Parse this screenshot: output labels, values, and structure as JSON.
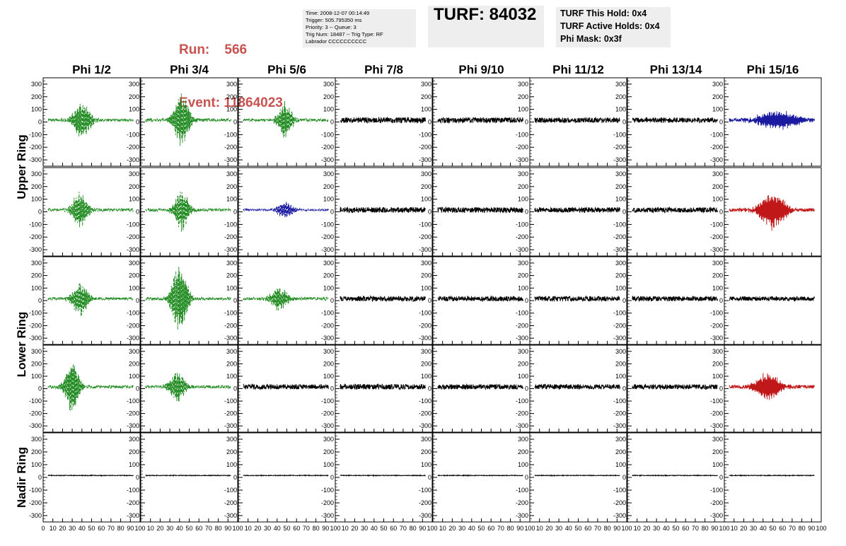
{
  "header": {
    "run_label": "Run:",
    "run_value": "566",
    "event_label": "Event:",
    "event_value": "11864023",
    "info_lines": [
      "Time: 2008-12-07 00:14:49",
      "Trigger: 505.795350 ms",
      "Priority: 3 -- Queue: 3",
      "Trig Num: 18487 -- Trig Type: RF",
      "Labrador CCCCCCCCCC"
    ],
    "turf_text": "TURF: 84032",
    "hold_lines": [
      "TURF This Hold: 0x4",
      "TURF Active Holds: 0x4",
      "Phi Mask: 0x3f"
    ],
    "header_color": "#c8524f"
  },
  "chart_data": {
    "type": "line",
    "columns": [
      "Phi 1/2",
      "Phi 3/4",
      "Phi 5/6",
      "Phi 7/8",
      "Phi 9/10",
      "Phi 11/12",
      "Phi 13/14",
      "Phi 15/16"
    ],
    "row_groups": [
      {
        "label": "Upper Ring",
        "rows": [
          0,
          1
        ]
      },
      {
        "label": "Lower Ring",
        "rows": [
          2,
          3
        ]
      },
      {
        "label": "Nadir Ring",
        "rows": [
          4
        ]
      }
    ],
    "xlim": [
      0,
      100
    ],
    "ylim": [
      -350,
      350
    ],
    "yticks": [
      -300,
      -200,
      -100,
      0,
      100,
      200,
      300
    ],
    "xtick_labels": [
      "0",
      "10",
      "20",
      "30",
      "40",
      "50",
      "60",
      "70",
      "80",
      "90",
      "100"
    ],
    "colors": {
      "green": "#1f8a1f",
      "black": "#000000",
      "blue": "#1a1aa0",
      "red": "#c01818"
    },
    "panels": [
      [
        {
          "color": "green",
          "dashed": true,
          "amp": 150,
          "center": 40,
          "width": 10,
          "noise": 12
        },
        {
          "color": "green",
          "dashed": true,
          "amp": 220,
          "center": 42,
          "width": 9,
          "noise": 12
        },
        {
          "color": "green",
          "dashed": true,
          "amp": 150,
          "center": 48,
          "width": 8,
          "noise": 12
        },
        {
          "color": "black",
          "dashed": false,
          "amp": 0,
          "center": 50,
          "width": 10,
          "noise": 22
        },
        {
          "color": "black",
          "dashed": false,
          "amp": 0,
          "center": 50,
          "width": 10,
          "noise": 22
        },
        {
          "color": "black",
          "dashed": false,
          "amp": 0,
          "center": 50,
          "width": 10,
          "noise": 20
        },
        {
          "color": "black",
          "dashed": false,
          "amp": 0,
          "center": 50,
          "width": 10,
          "noise": 20
        },
        {
          "color": "blue",
          "dashed": false,
          "amp": 80,
          "center": 55,
          "width": 22,
          "noise": 14
        }
      ],
      [
        {
          "color": "green",
          "dashed": true,
          "amp": 150,
          "center": 38,
          "width": 9,
          "noise": 12
        },
        {
          "color": "green",
          "dashed": true,
          "amp": 180,
          "center": 42,
          "width": 8,
          "noise": 12
        },
        {
          "color": "blue",
          "dashed": true,
          "amp": 70,
          "center": 48,
          "width": 9,
          "noise": 8
        },
        {
          "color": "black",
          "dashed": false,
          "amp": 0,
          "center": 50,
          "width": 10,
          "noise": 22
        },
        {
          "color": "black",
          "dashed": false,
          "amp": 0,
          "center": 50,
          "width": 10,
          "noise": 22
        },
        {
          "color": "black",
          "dashed": false,
          "amp": 0,
          "center": 50,
          "width": 10,
          "noise": 20
        },
        {
          "color": "black",
          "dashed": false,
          "amp": 0,
          "center": 50,
          "width": 10,
          "noise": 20
        },
        {
          "color": "red",
          "dashed": false,
          "amp": 160,
          "center": 50,
          "width": 14,
          "noise": 14
        }
      ],
      [
        {
          "color": "green",
          "dashed": true,
          "amp": 140,
          "center": 38,
          "width": 9,
          "noise": 12
        },
        {
          "color": "green",
          "dashed": true,
          "amp": 290,
          "center": 40,
          "width": 9,
          "noise": 12
        },
        {
          "color": "green",
          "dashed": true,
          "amp": 100,
          "center": 42,
          "width": 10,
          "noise": 12
        },
        {
          "color": "black",
          "dashed": false,
          "amp": 0,
          "center": 50,
          "width": 10,
          "noise": 20
        },
        {
          "color": "black",
          "dashed": false,
          "amp": 0,
          "center": 50,
          "width": 10,
          "noise": 20
        },
        {
          "color": "black",
          "dashed": false,
          "amp": 0,
          "center": 50,
          "width": 10,
          "noise": 20
        },
        {
          "color": "black",
          "dashed": false,
          "amp": 0,
          "center": 50,
          "width": 10,
          "noise": 20
        },
        {
          "color": "black",
          "dashed": false,
          "amp": 0,
          "center": 50,
          "width": 10,
          "noise": 18
        }
      ],
      [
        {
          "color": "green",
          "dashed": true,
          "amp": 230,
          "center": 30,
          "width": 8,
          "noise": 12
        },
        {
          "color": "green",
          "dashed": true,
          "amp": 130,
          "center": 38,
          "width": 9,
          "noise": 12
        },
        {
          "color": "black",
          "dashed": false,
          "amp": 0,
          "center": 50,
          "width": 10,
          "noise": 20
        },
        {
          "color": "black",
          "dashed": false,
          "amp": 0,
          "center": 50,
          "width": 10,
          "noise": 22
        },
        {
          "color": "black",
          "dashed": false,
          "amp": 0,
          "center": 50,
          "width": 10,
          "noise": 20
        },
        {
          "color": "black",
          "dashed": false,
          "amp": 0,
          "center": 50,
          "width": 10,
          "noise": 20
        },
        {
          "color": "black",
          "dashed": false,
          "amp": 0,
          "center": 50,
          "width": 10,
          "noise": 20
        },
        {
          "color": "red",
          "dashed": false,
          "amp": 120,
          "center": 45,
          "width": 14,
          "noise": 14
        }
      ],
      [
        {
          "color": "black",
          "dashed": false,
          "amp": 0,
          "center": 50,
          "width": 10,
          "noise": 3
        },
        {
          "color": "black",
          "dashed": false,
          "amp": 0,
          "center": 50,
          "width": 10,
          "noise": 3
        },
        {
          "color": "black",
          "dashed": false,
          "amp": 0,
          "center": 50,
          "width": 10,
          "noise": 3
        },
        {
          "color": "black",
          "dashed": false,
          "amp": 0,
          "center": 50,
          "width": 10,
          "noise": 3
        },
        {
          "color": "black",
          "dashed": false,
          "amp": 0,
          "center": 50,
          "width": 10,
          "noise": 3
        },
        {
          "color": "black",
          "dashed": false,
          "amp": 0,
          "center": 50,
          "width": 10,
          "noise": 3
        },
        {
          "color": "black",
          "dashed": false,
          "amp": 0,
          "center": 50,
          "width": 10,
          "noise": 3
        },
        {
          "color": "black",
          "dashed": false,
          "amp": 0,
          "center": 50,
          "width": 10,
          "noise": 3
        }
      ]
    ]
  }
}
